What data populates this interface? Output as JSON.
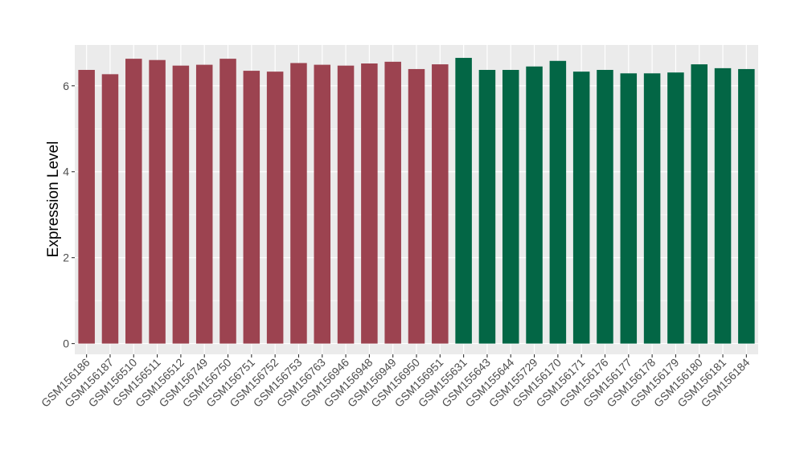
{
  "chart_data": {
    "type": "bar",
    "title": "",
    "xlabel": "",
    "ylabel": "Expression Level",
    "ylim": [
      -0.25,
      6.95
    ],
    "yticks": [
      0,
      2,
      4,
      6
    ],
    "grid": true,
    "legend": "none",
    "categories": [
      "GSM156186",
      "GSM156187",
      "GSM156510",
      "GSM156511",
      "GSM156512",
      "GSM156749",
      "GSM156750",
      "GSM156751",
      "GSM156752",
      "GSM156753",
      "GSM156763",
      "GSM156946",
      "GSM156948",
      "GSM156949",
      "GSM156950",
      "GSM156951",
      "GSM155631",
      "GSM155643",
      "GSM155644",
      "GSM155729",
      "GSM156170",
      "GSM156171",
      "GSM156176",
      "GSM156177",
      "GSM156178",
      "GSM156179",
      "GSM156180",
      "GSM156181",
      "GSM156184"
    ],
    "values": [
      6.37,
      6.27,
      6.63,
      6.6,
      6.47,
      6.49,
      6.63,
      6.35,
      6.33,
      6.53,
      6.49,
      6.47,
      6.52,
      6.56,
      6.39,
      6.5,
      6.65,
      6.37,
      6.37,
      6.45,
      6.58,
      6.33,
      6.37,
      6.29,
      6.29,
      6.31,
      6.5,
      6.41,
      6.39
    ],
    "group_colors": {
      "first": "#9c4350",
      "second": "#036645"
    },
    "group_split_index": 16,
    "panel_background": "#ebebeb",
    "grid_color": "#ffffff"
  }
}
